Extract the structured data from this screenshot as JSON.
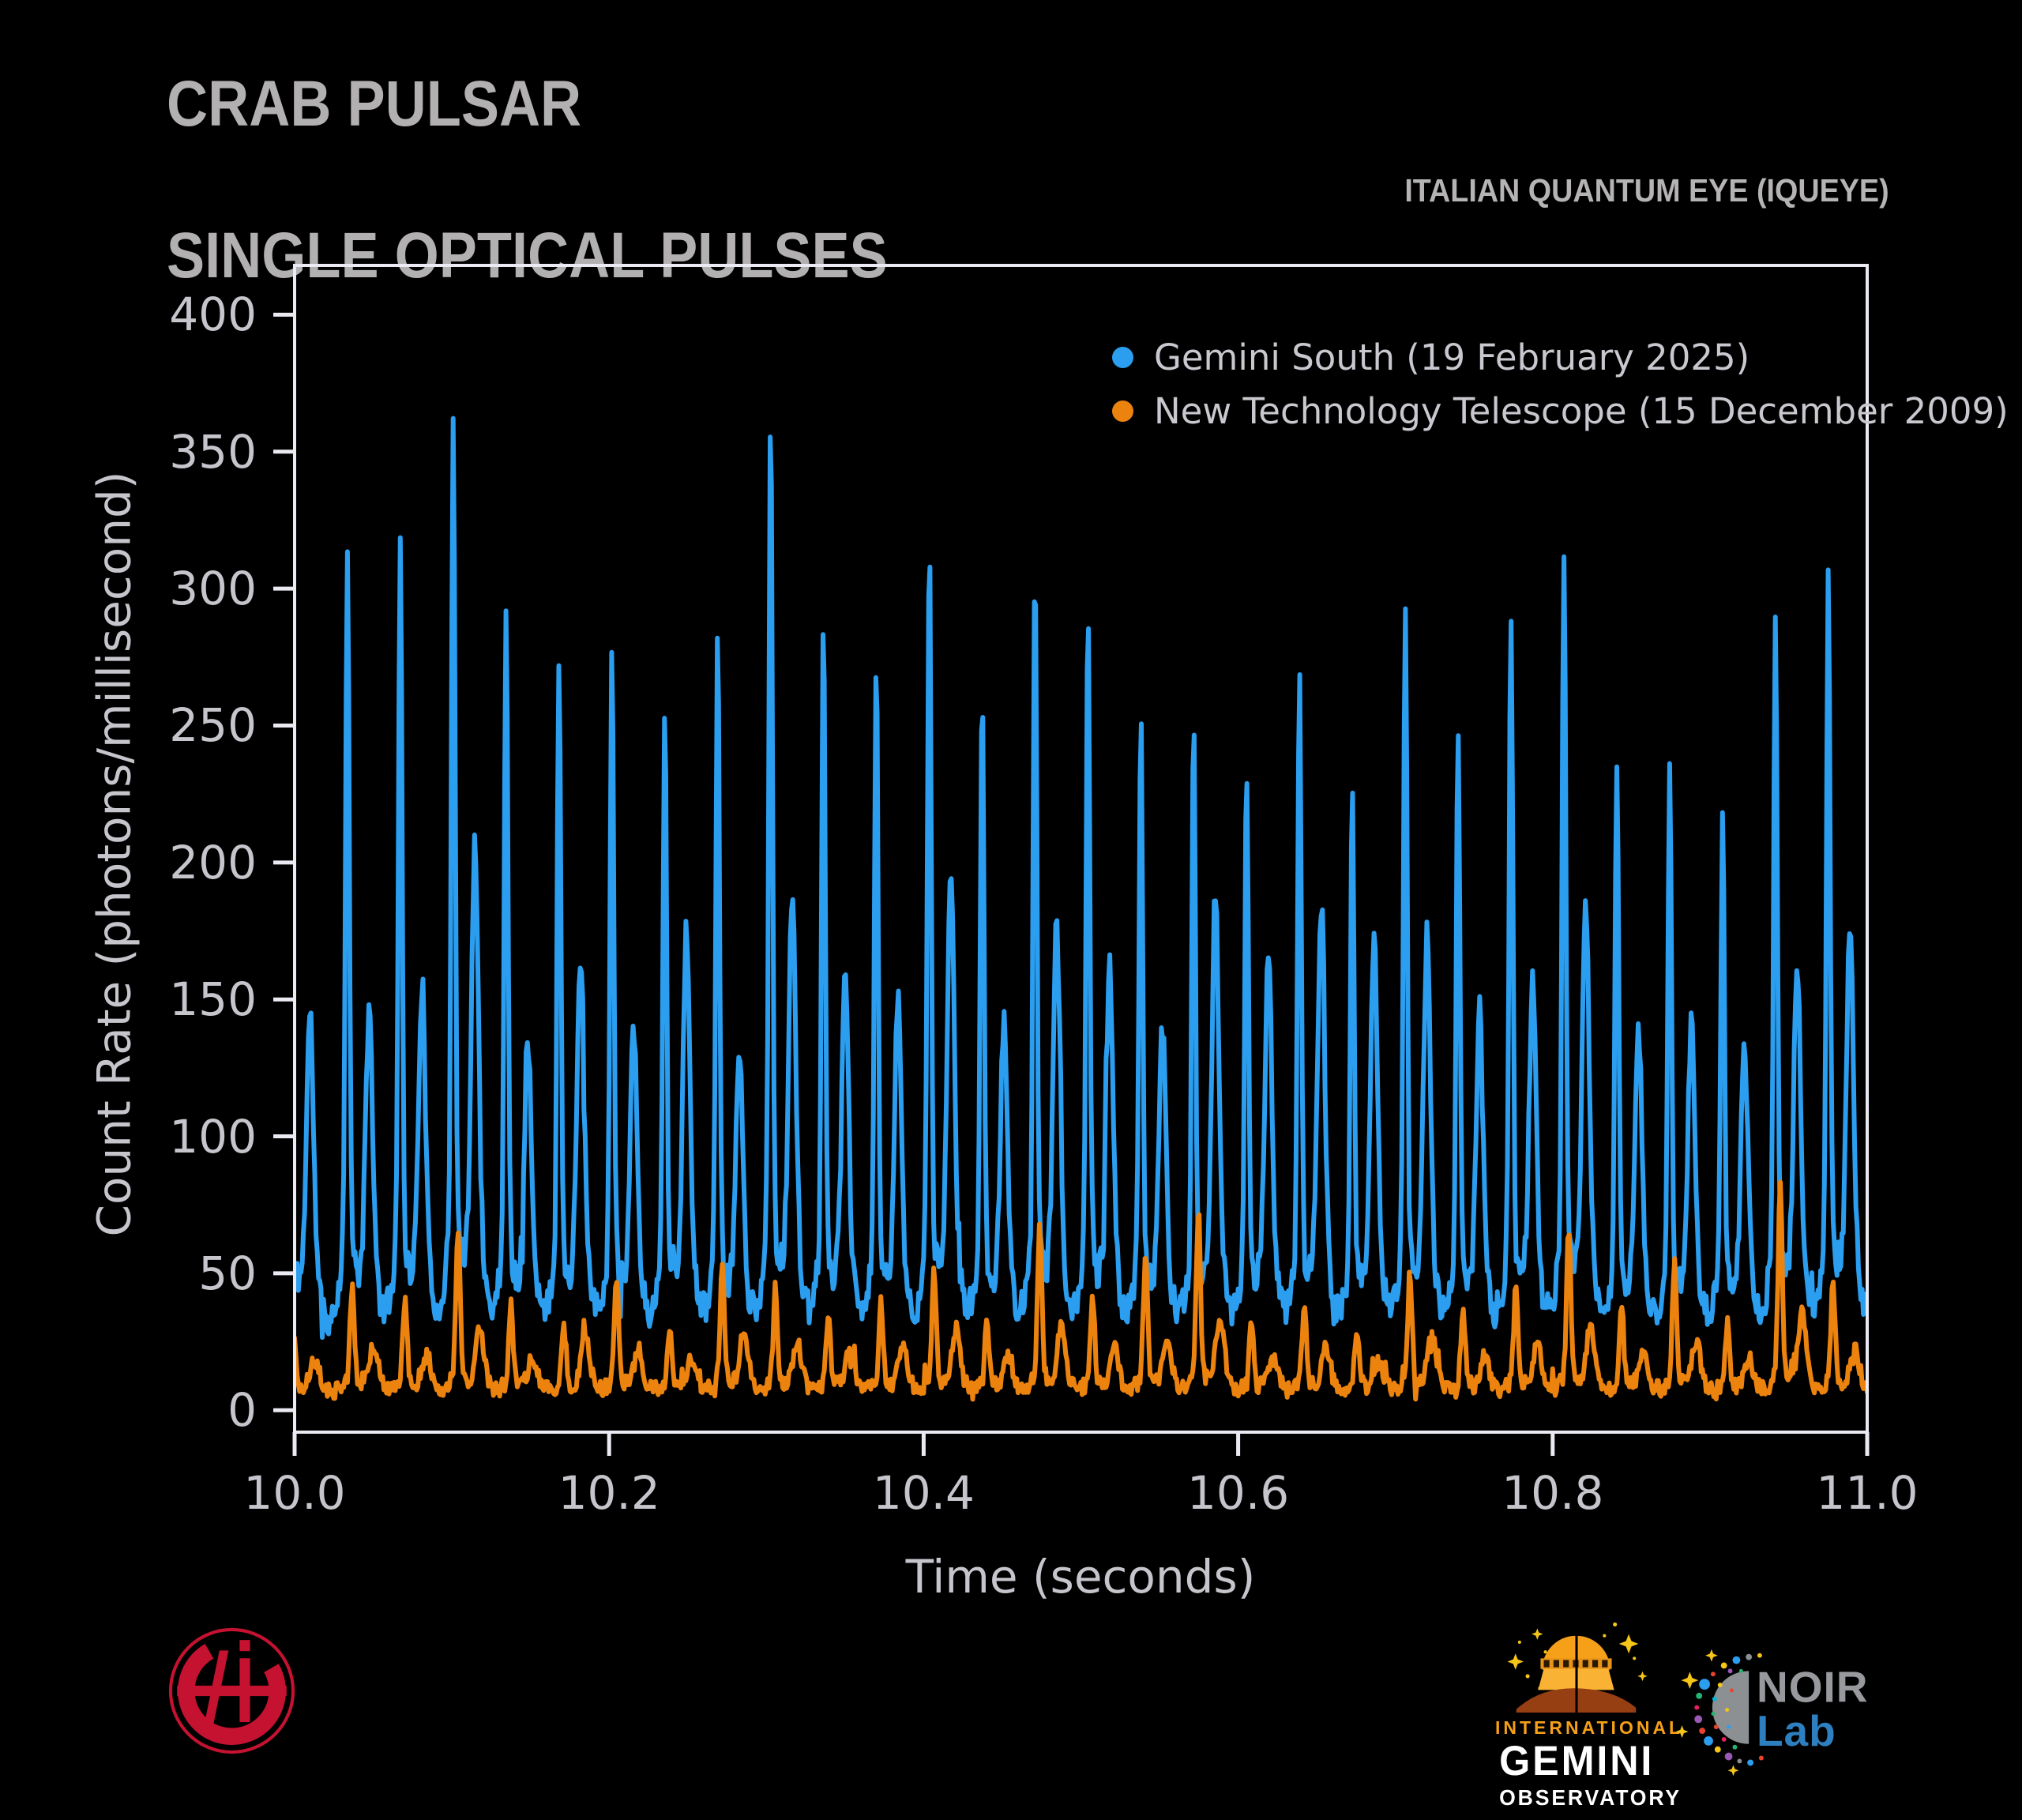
{
  "header": {
    "title_line1": "CRAB PULSAR",
    "title_line2": "SINGLE OPTICAL PULSES",
    "subtitle": "ITALIAN QUANTUM EYE (IQUEYE)"
  },
  "chart_data": {
    "type": "line",
    "title": "Crab Pulsar — Single Optical Pulses",
    "xlabel": "Time (seconds)",
    "ylabel": "Count Rate (photons/millisecond)",
    "xlim": [
      10.0,
      11.0
    ],
    "ylim": [
      -8,
      418
    ],
    "x_ticks": [
      "10.0",
      "10.2",
      "10.4",
      "10.6",
      "10.8",
      "11.0"
    ],
    "y_ticks": [
      0,
      50,
      100,
      150,
      200,
      250,
      300,
      350,
      400
    ],
    "grid": false,
    "legend_position": "upper right inside",
    "pulse_period_s": 0.0336,
    "interpulse_delay_s": 0.0138,
    "pulse_times": [
      9.996,
      10.0336,
      10.0672,
      10.1009,
      10.1345,
      10.1681,
      10.2018,
      10.2354,
      10.269,
      10.3027,
      10.3363,
      10.3699,
      10.4036,
      10.4372,
      10.4708,
      10.5045,
      10.5381,
      10.5717,
      10.6054,
      10.639,
      10.6726,
      10.7063,
      10.7399,
      10.7735,
      10.8072,
      10.8408,
      10.8744,
      10.9081,
      10.9417,
      10.9753,
      11.009
    ],
    "series": [
      {
        "name": "Gemini South (19 February 2025)",
        "color": "#2b9ef0",
        "baseline": 31,
        "noise_amplitude": 6,
        "time_offset_s": 0,
        "main_peaks": [
          252,
          288,
          290,
          331,
          266,
          249,
          254,
          232,
          253,
          329,
          259,
          246,
          287,
          240,
          282,
          267,
          228,
          224,
          214,
          245,
          204,
          264,
          224,
          264,
          282,
          215,
          209,
          195,
          262,
          278,
          288
        ],
        "interpulse_peaks": [
          95,
          96,
          104,
          148,
          88,
          112,
          92,
          120,
          85,
          132,
          105,
          98,
          140,
          93,
          122,
          108,
          90,
          132,
          114,
          129,
          119,
          118,
          96,
          104,
          128,
          88,
          92,
          84,
          110,
          120,
          100
        ]
      },
      {
        "name": "New Technology Telescope (15 December 2009)",
        "color": "#ec830e",
        "baseline": 7,
        "noise_amplitude": 3,
        "time_offset_s": 0.003,
        "main_peaks": [
          30,
          42,
          38,
          61,
          35,
          30,
          45,
          28,
          50,
          40,
          33,
          36,
          48,
          30,
          62,
          38,
          52,
          66,
          30,
          35,
          28,
          46,
          33,
          40,
          60,
          35,
          48,
          30,
          73,
          42,
          38
        ],
        "interpulse_peaks": [
          10,
          14,
          12,
          20,
          11,
          16,
          13,
          10,
          18,
          15,
          12,
          14,
          19,
          11,
          20,
          13,
          16,
          22,
          10,
          12,
          9,
          17,
          11,
          14,
          19,
          12,
          15,
          10,
          24,
          14,
          12
        ]
      }
    ]
  },
  "footer": {
    "gemini": {
      "line1": "INTERNATIONAL",
      "line2": "GEMINI",
      "line3": "OBSERVATORY"
    },
    "noirlab": {
      "noir": "NOIR",
      "lab": "Lab"
    }
  },
  "colors": {
    "background": "#000000",
    "title_gray": "#b2b0b1",
    "tick_label_gray": "#c7c5cc",
    "axis_frame": "#ebe9f2",
    "gemini_blue": "#2b9ef0",
    "ntt_orange": "#ec830e",
    "gemini_logo_orange": "#f6a01a",
    "gemini_hill_brown": "#963f12",
    "noir_gray": "#97999c",
    "noir_blue": "#2d7fc0",
    "sparkle_yellow": "#f5c518",
    "iqueye_red": "#c41230"
  }
}
